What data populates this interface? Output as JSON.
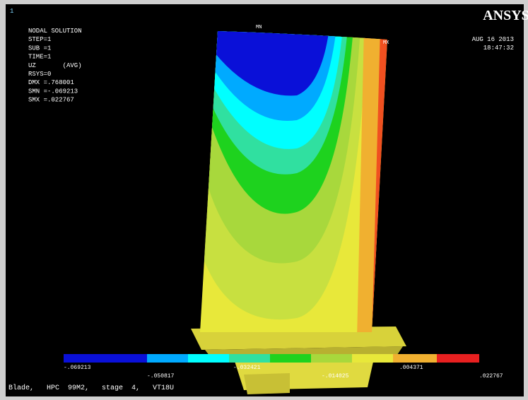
{
  "window_number": "1",
  "info": [
    "NODAL SOLUTION",
    "STEP=1",
    "SUB =1",
    "TIME=1",
    "UZ       (AVG)",
    "RSYS=0",
    "DMX =.768001",
    "SMN =-.069213",
    "SMX =.022767"
  ],
  "logo": "ANSYS",
  "date": "AUG 16 2013",
  "time": "18:47:32",
  "min_marker": "MN",
  "max_marker": "MX",
  "legend": {
    "top_labels": [
      "-.069213",
      "-.032421",
      ".004371"
    ],
    "bottom_labels": [
      "-.050817",
      "-.014025",
      ".022767"
    ]
  },
  "footer": "Blade,   HPC  99M2,   stage  4,   VT18U"
}
